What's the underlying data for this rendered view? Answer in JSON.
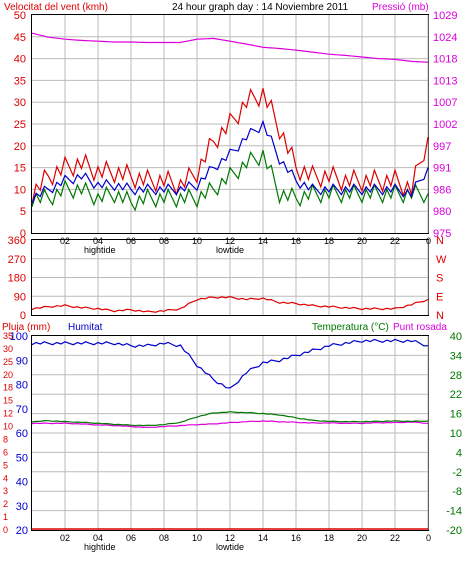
{
  "header": {
    "wind_title": "Velocitat del vent (kmh)",
    "center_title": "24 hour graph day : 14 Noviembre 2011",
    "pressure_title": "Pressió (mb)"
  },
  "colors": {
    "red": "#dd0000",
    "blue": "#0000cc",
    "green": "#007700",
    "magenta": "#dd00dd",
    "grid": "#bbbbbb",
    "frame": "#000000"
  },
  "time_axis": {
    "labels": [
      "02",
      "04",
      "06",
      "08",
      "10",
      "12",
      "14",
      "16",
      "18",
      "20",
      "22",
      "0"
    ],
    "tide_labels": [
      {
        "text": "hightide",
        "hour": 4
      },
      {
        "text": "lowtide",
        "hour": 12
      }
    ]
  },
  "chart_data": [
    {
      "type": "line",
      "left_axis": {
        "label": "Velocitat del vent (kmh)",
        "ticks": [
          "0",
          "5",
          "10",
          "15",
          "20",
          "25",
          "30",
          "35",
          "40",
          "45",
          "50"
        ],
        "ylim": [
          0,
          50
        ]
      },
      "right_axis": {
        "label": "Pressió (mb)",
        "ticks": [
          "975",
          "980",
          "986",
          "991",
          "997",
          "1002",
          "1007",
          "1013",
          "1018",
          "1024",
          "1029"
        ],
        "ylim": [
          975,
          1029
        ]
      },
      "x": [
        0,
        1,
        2,
        3,
        4,
        5,
        6,
        7,
        8,
        9,
        10,
        11,
        12,
        13,
        14,
        15,
        16,
        17,
        18,
        19,
        20,
        21,
        22,
        23,
        24
      ],
      "series": [
        {
          "color": "red",
          "axis": "left",
          "values": [
            9,
            13,
            15,
            16,
            14,
            14,
            13,
            12,
            12,
            11,
            14,
            21,
            25,
            30,
            32,
            24,
            15,
            13,
            13,
            12,
            12,
            12,
            12,
            10,
            22
          ]
        },
        {
          "color": "blue",
          "axis": "left",
          "values": [
            8,
            10,
            12,
            13,
            11,
            11,
            10,
            10,
            10,
            10,
            11,
            15,
            18,
            22,
            25,
            17,
            12,
            10,
            10,
            10,
            10,
            10,
            10,
            9,
            15
          ]
        },
        {
          "color": "green",
          "axis": "left",
          "values": [
            8,
            8,
            10,
            10,
            8,
            9,
            7,
            8,
            8,
            8,
            8,
            10,
            13,
            16,
            18,
            9,
            8,
            9,
            9,
            9,
            9,
            9,
            9,
            9,
            9
          ]
        },
        {
          "color": "magenta",
          "axis": "right",
          "values": [
            1024.5,
            1023.5,
            1023,
            1022.7,
            1022.5,
            1022.3,
            1022.3,
            1022.2,
            1022.2,
            1022.2,
            1023,
            1023.2,
            1022.5,
            1021.8,
            1021,
            1020.7,
            1020.3,
            1019.8,
            1019.3,
            1019,
            1018.6,
            1018.2,
            1018,
            1017.5,
            1017.3
          ]
        }
      ]
    },
    {
      "type": "line",
      "left_axis": {
        "ticks": [
          "0",
          "90",
          "180",
          "270",
          "360"
        ],
        "ylim": [
          0,
          360
        ]
      },
      "right_axis": {
        "ticks": [
          "N",
          "E",
          "S",
          "W",
          "N"
        ]
      },
      "x": [
        0,
        1,
        2,
        3,
        4,
        5,
        6,
        7,
        8,
        9,
        10,
        11,
        12,
        13,
        14,
        15,
        16,
        17,
        18,
        19,
        20,
        21,
        22,
        23,
        24
      ],
      "series": [
        {
          "color": "red",
          "values": [
            30,
            40,
            45,
            35,
            30,
            20,
            25,
            15,
            20,
            30,
            75,
            85,
            85,
            75,
            80,
            60,
            55,
            45,
            40,
            35,
            30,
            30,
            30,
            50,
            75
          ]
        }
      ]
    },
    {
      "type": "line",
      "titles": {
        "rain": "Pluja (mm)",
        "humidity": "Humitat",
        "temperature": "Temperatura (°C)",
        "dewpoint": "Punt rosada"
      },
      "rain_axis": {
        "ticks": [
          "0",
          "1",
          "2",
          "3",
          "4",
          "5",
          "6",
          "8",
          "10",
          "12",
          "15",
          "18",
          "20",
          "25",
          "30",
          "35"
        ]
      },
      "humidity_axis": {
        "ticks": [
          "20",
          "30",
          "40",
          "50",
          "60",
          "70",
          "80",
          "90",
          "100"
        ],
        "ylim": [
          20,
          100
        ]
      },
      "temperature_axis": {
        "ticks": [
          "-20",
          "-14",
          "-8",
          "-2",
          "4",
          "10",
          "16",
          "22",
          "28",
          "34",
          "40"
        ],
        "ylim": [
          -20,
          40
        ]
      },
      "x": [
        0,
        1,
        2,
        3,
        4,
        5,
        6,
        7,
        8,
        9,
        10,
        11,
        12,
        13,
        14,
        15,
        16,
        17,
        18,
        19,
        20,
        21,
        22,
        23,
        24
      ],
      "series": [
        {
          "name": "Humitat",
          "color": "blue",
          "values": [
            97,
            97,
            97,
            97,
            97,
            97,
            96,
            96,
            97,
            96,
            88,
            82,
            78,
            85,
            89,
            90,
            92,
            94,
            96,
            97,
            98,
            98,
            98,
            98,
            96
          ]
        },
        {
          "name": "Temperatura (°C)",
          "color": "green",
          "values": [
            13.5,
            13.8,
            13.5,
            13.3,
            13,
            12.7,
            12.4,
            12.3,
            12.6,
            13.3,
            15,
            16.2,
            16.5,
            16.3,
            16,
            15.6,
            14.7,
            13.9,
            13.6,
            13.5,
            13.5,
            13.6,
            13.7,
            13.6,
            13.7
          ]
        },
        {
          "name": "Punt rosada",
          "color": "magenta",
          "values": [
            13,
            13,
            13,
            12.8,
            12.5,
            12.3,
            12,
            11.7,
            12,
            12.3,
            12.6,
            12.8,
            13.2,
            13.5,
            13.7,
            13.5,
            13.3,
            13.1,
            13.1,
            13,
            13,
            13.2,
            13.2,
            13.4,
            13
          ]
        },
        {
          "name": "Pluja (mm)",
          "color": "red",
          "values": [
            0,
            0,
            0,
            0,
            0,
            0,
            0,
            0,
            0,
            0,
            0,
            0,
            0,
            0,
            0,
            0,
            0,
            0,
            0,
            0,
            0,
            0,
            0,
            0,
            0
          ]
        }
      ]
    }
  ]
}
